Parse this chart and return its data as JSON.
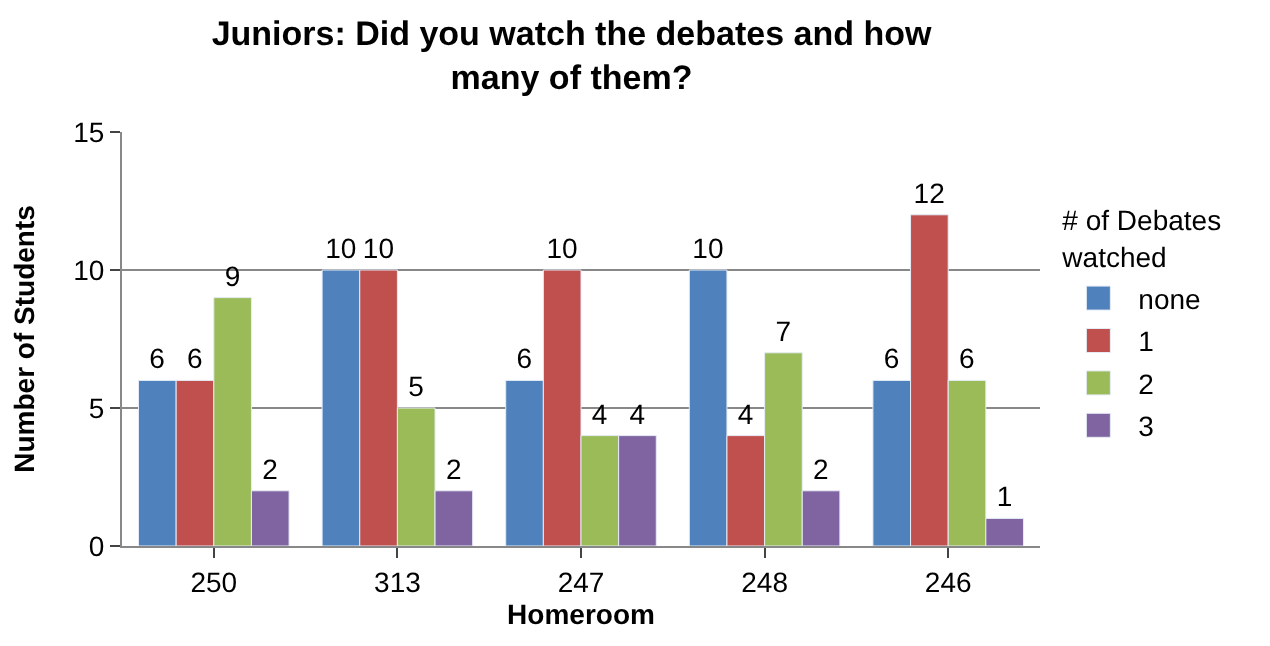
{
  "chart_data": {
    "type": "bar",
    "title": "Juniors: Did you watch the debates and how many of them?",
    "xlabel": "Homeroom",
    "ylabel": "Number of Students",
    "legend_title": "# of Debates watched",
    "categories": [
      "250",
      "313",
      "247",
      "248",
      "246"
    ],
    "series": [
      {
        "name": "none",
        "color": "#4f81bd",
        "values": [
          6,
          10,
          6,
          10,
          6
        ]
      },
      {
        "name": "1",
        "color": "#c0504d",
        "values": [
          6,
          10,
          10,
          4,
          12
        ]
      },
      {
        "name": "2",
        "color": "#9bbb59",
        "values": [
          9,
          5,
          4,
          7,
          6
        ]
      },
      {
        "name": "3",
        "color": "#8064a2",
        "values": [
          2,
          2,
          4,
          2,
          1
        ]
      }
    ],
    "ylim": [
      0,
      15
    ],
    "yticks": [
      0,
      5,
      10,
      15
    ],
    "grid": "y",
    "legend": "right",
    "data_labels": true
  }
}
